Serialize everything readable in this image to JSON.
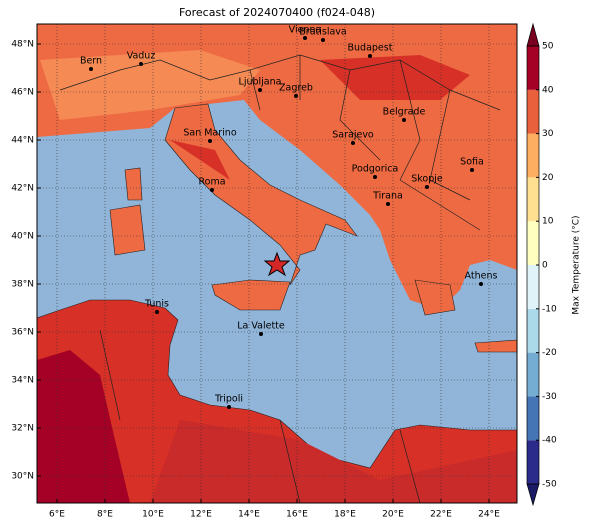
{
  "title": "Forecast of 2024070400 (f024-048)",
  "map": {
    "xticks": [
      {
        "value": 6,
        "label": "6°E"
      },
      {
        "value": 8,
        "label": "8°E"
      },
      {
        "value": 10,
        "label": "10°E"
      },
      {
        "value": 12,
        "label": "12°E"
      },
      {
        "value": 14,
        "label": "14°E"
      },
      {
        "value": 16,
        "label": "16°E"
      },
      {
        "value": 18,
        "label": "18°E"
      },
      {
        "value": 20,
        "label": "20°E"
      },
      {
        "value": 22,
        "label": "22°E"
      },
      {
        "value": 24,
        "label": "24°E"
      }
    ],
    "yticks": [
      {
        "value": 30,
        "label": "30°N"
      },
      {
        "value": 32,
        "label": "32°N"
      },
      {
        "value": 34,
        "label": "34°N"
      },
      {
        "value": 36,
        "label": "36°N"
      },
      {
        "value": 38,
        "label": "38°N"
      },
      {
        "value": 40,
        "label": "40°N"
      },
      {
        "value": 42,
        "label": "42°N"
      },
      {
        "value": 44,
        "label": "44°N"
      },
      {
        "value": 46,
        "label": "46°N"
      },
      {
        "value": 48,
        "label": "48°N"
      }
    ],
    "cities": [
      "Bern",
      "Vaduz",
      "Vienna",
      "Bratislava",
      "Budapest",
      "Ljubljana",
      "Zagreb",
      "Belgrade",
      "San Marino",
      "Sarajevo",
      "Roma",
      "Podgorica",
      "Skopje",
      "Sofia",
      "Tirana",
      "Athens",
      "Tunis",
      "La Valette",
      "Tripoli"
    ]
  },
  "colorbar": {
    "label": "Max Temperature (°C)",
    "clim": [
      -50,
      50
    ],
    "ticks": [
      -50,
      -40,
      -30,
      -20,
      -10,
      0,
      10,
      20,
      30,
      40,
      50
    ],
    "colors": [
      "#2b2b8c",
      "#4575b4",
      "#74add1",
      "#abd9e9",
      "#e0f3f8",
      "#ffffbf",
      "#fee090",
      "#fdae61",
      "#e8603c",
      "#a50026"
    ],
    "under": "#1a1a66",
    "over": "#7a0020"
  }
}
